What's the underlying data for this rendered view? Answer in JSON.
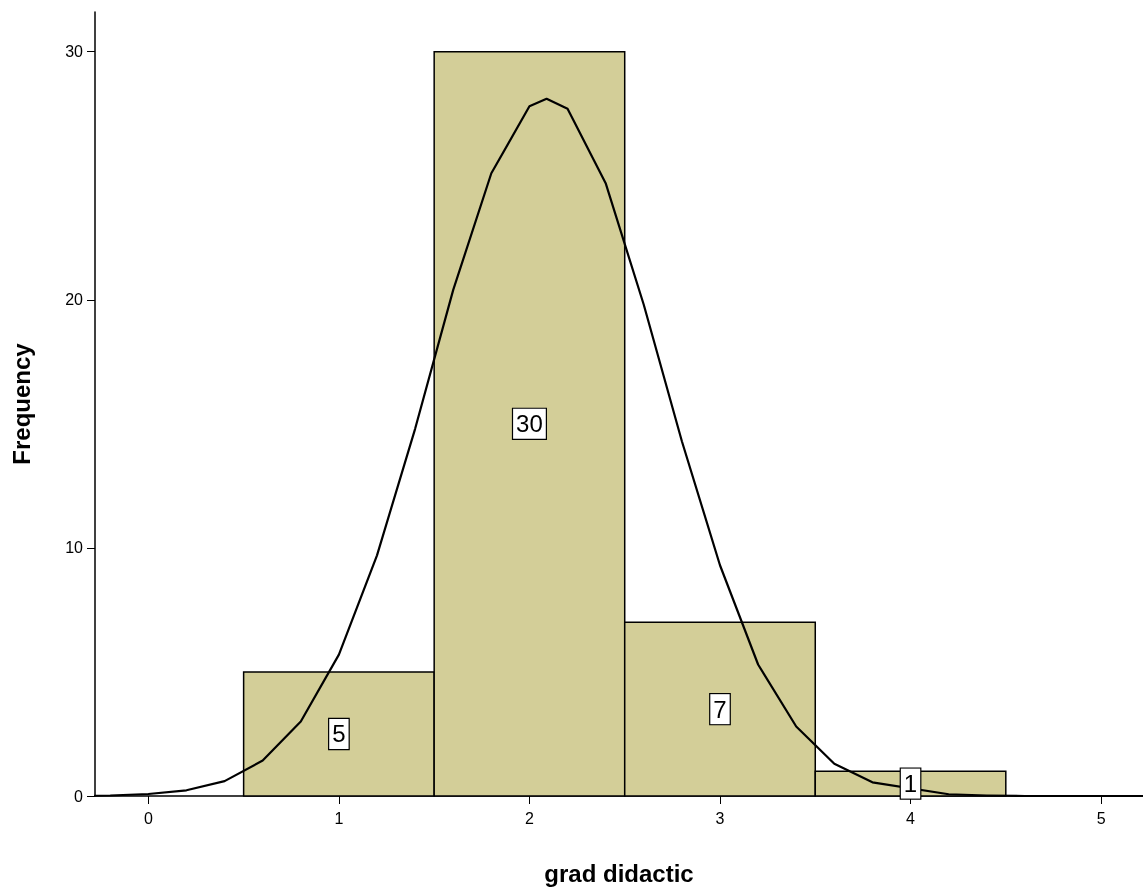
{
  "chart_data": {
    "type": "histogram",
    "xlabel": "grad didactic",
    "ylabel": "Frequency",
    "bins": [
      0.5,
      1.5,
      2.5,
      3.5,
      4.5
    ],
    "values": [
      5,
      30,
      7,
      1
    ],
    "color": "#d3ce98",
    "value_labels": [
      "5",
      "30",
      "7",
      "1"
    ],
    "xlim": [
      -0.28,
      5.22
    ],
    "ylim": [
      0,
      31.6
    ],
    "xticks": [
      0,
      1,
      2,
      3,
      4,
      5
    ],
    "yticks": [
      0,
      10,
      20,
      30
    ],
    "grid": false,
    "series": [
      {
        "type": "line",
        "color": "#000000",
        "marker": "none",
        "line_style": "solid",
        "x": [
          -0.28,
          -0.2,
          0,
          0.2,
          0.4,
          0.6,
          0.8,
          1,
          1.2,
          1.4,
          1.6,
          1.8,
          2,
          2.09,
          2.2,
          2.4,
          2.6,
          2.8,
          3,
          3.2,
          3.4,
          3.6,
          3.8,
          4,
          4.2,
          4.4,
          4.6,
          5.22
        ],
        "values": [
          0.01,
          0.02,
          0.08,
          0.23,
          0.6,
          1.43,
          3,
          5.7,
          9.7,
          14.8,
          20.4,
          25.1,
          27.8,
          28.1,
          27.7,
          24.7,
          19.8,
          14.3,
          9.3,
          5.3,
          2.8,
          1.3,
          0.55,
          null,
          0.07,
          0.02,
          0,
          0
        ]
      }
    ]
  }
}
